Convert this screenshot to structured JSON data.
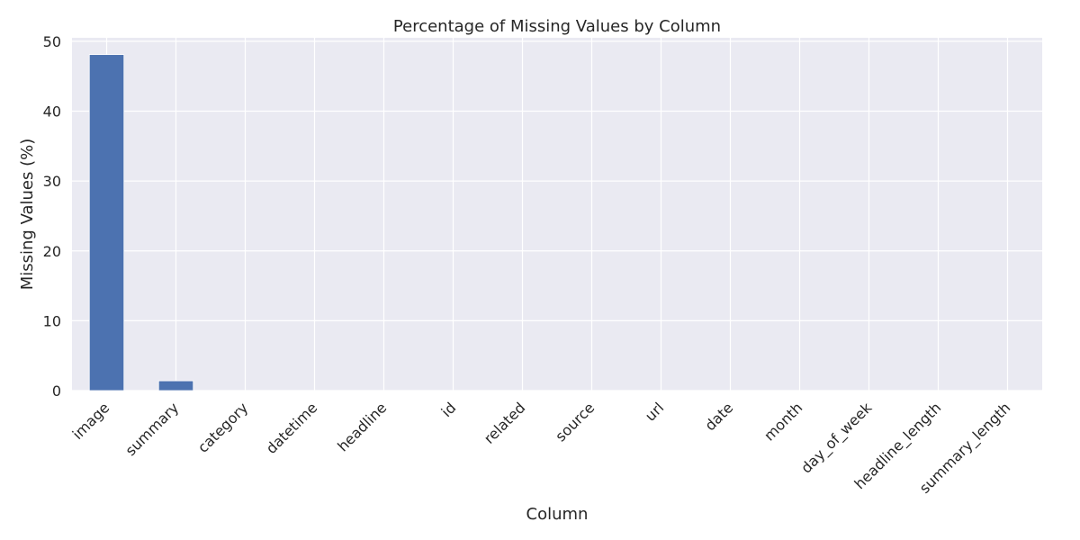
{
  "chart_data": {
    "type": "bar",
    "title": "Percentage of Missing Values by Column",
    "xlabel": "Column",
    "ylabel": "Missing Values (%)",
    "categories": [
      "image",
      "summary",
      "category",
      "datetime",
      "headline",
      "id",
      "related",
      "source",
      "url",
      "date",
      "month",
      "day_of_week",
      "headline_length",
      "summary_length"
    ],
    "values": [
      48.1,
      1.4,
      0,
      0,
      0,
      0,
      0,
      0,
      0,
      0,
      0,
      0,
      0,
      0
    ],
    "ylim": [
      0,
      50.5
    ],
    "yticks": [
      0,
      10,
      20,
      30,
      40,
      50
    ],
    "grid": true,
    "legend": "none",
    "colors": {
      "bar": "#4C72B0",
      "plot_background": "#EAEAF2",
      "grid": "#FFFFFF",
      "text": "#262626"
    }
  }
}
